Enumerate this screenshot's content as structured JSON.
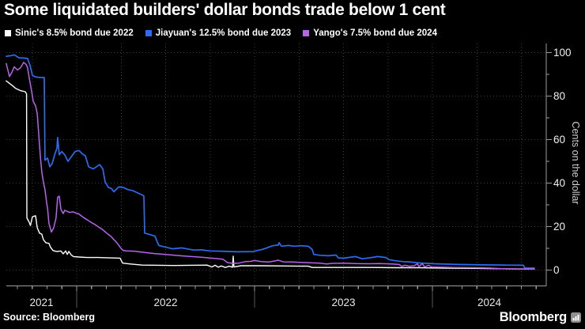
{
  "page": {
    "title": "Some liquidated builders' dollar bonds trade below 1 cent"
  },
  "source": {
    "label": "Source: Bloomberg"
  },
  "brand": {
    "wordmark": "Bloomberg",
    "icon": "bar-chart-icon"
  },
  "colors": {
    "background": "#000000",
    "grid": "#3c3c3c",
    "axis": "#9b9b9b",
    "separator": "#5a5a5a",
    "tick_label": "#f0f0f0",
    "year_label": "#e8e8e8",
    "axis_title": "#cfcfcf",
    "sinic": "#ffffff",
    "jiayuan": "#2a6cf2",
    "yango": "#b763ec"
  },
  "chart_data": {
    "type": "line",
    "title": "Some liquidated builders' dollar bonds trade below 1 cent",
    "xlabel": "",
    "ylabel": "Cents on the dollar",
    "ylim": [
      0,
      100
    ],
    "y_ticks_major": [
      0,
      20,
      40,
      60,
      80,
      100
    ],
    "y_ticks_minor": [
      10,
      30,
      50,
      70,
      90
    ],
    "x_range_decimal_years": [
      2021.6,
      2024.64
    ],
    "x_year_labels": [
      "2021",
      "2022",
      "2023",
      "2024"
    ],
    "x_year_boundaries": [
      2022,
      2023,
      2024
    ],
    "grid": "dotted horizontal at major y ticks, dotted vertical quarterly",
    "legend_position": "top-left",
    "series": [
      {
        "name": "Sinic's 8.5% bond due 2022",
        "color": "#ffffff",
        "points": [
          [
            2021.604,
            87
          ],
          [
            2021.636,
            85
          ],
          [
            2021.658,
            83.5
          ],
          [
            2021.684,
            82.5
          ],
          [
            2021.711,
            82
          ],
          [
            2021.718,
            81
          ],
          [
            2021.72,
            24
          ],
          [
            2021.733,
            22
          ],
          [
            2021.74,
            20.5
          ],
          [
            2021.751,
            24.5
          ],
          [
            2021.769,
            25
          ],
          [
            2021.778,
            19.5
          ],
          [
            2021.791,
            17
          ],
          [
            2021.804,
            16.5
          ],
          [
            2021.813,
            14
          ],
          [
            2021.827,
            12.5
          ],
          [
            2021.844,
            12.3
          ],
          [
            2021.853,
            10.5
          ],
          [
            2021.867,
            9
          ],
          [
            2021.889,
            8.5
          ],
          [
            2021.911,
            8.8
          ],
          [
            2021.924,
            7.5
          ],
          [
            2021.938,
            8.8
          ],
          [
            2021.947,
            7.2
          ],
          [
            2021.956,
            8.6
          ],
          [
            2021.969,
            7
          ],
          [
            2021.982,
            6.2
          ],
          [
            2022.013,
            6
          ],
          [
            2022.058,
            5.8
          ],
          [
            2022.124,
            5.8
          ],
          [
            2022.191,
            5.6
          ],
          [
            2022.244,
            5.5
          ],
          [
            2022.258,
            3.2
          ],
          [
            2022.302,
            2.8
          ],
          [
            2022.369,
            2.3
          ],
          [
            2022.458,
            2.2
          ],
          [
            2022.547,
            2.1
          ],
          [
            2022.636,
            2.2
          ],
          [
            2022.733,
            2.3
          ],
          [
            2022.76,
            1.4
          ],
          [
            2022.778,
            2.2
          ],
          [
            2022.796,
            1.3
          ],
          [
            2022.813,
            1.9
          ],
          [
            2022.836,
            1.2
          ],
          [
            2022.858,
            1.8
          ],
          [
            2022.876,
            1.3
          ],
          [
            2022.88,
            6.4
          ],
          [
            2022.884,
            1.4
          ],
          [
            2022.924,
            2
          ],
          [
            2023.036,
            2
          ],
          [
            2023.169,
            1.9
          ],
          [
            2023.302,
            1.8
          ],
          [
            2023.324,
            1.2
          ],
          [
            2023.436,
            1.2
          ],
          [
            2023.569,
            1.2
          ],
          [
            2023.658,
            1.2
          ],
          [
            2023.791,
            1.1
          ],
          [
            2023.924,
            1.1
          ],
          [
            2024.058,
            0.9
          ],
          [
            2024.236,
            0.8
          ],
          [
            2024.413,
            0.6
          ],
          [
            2024.502,
            0.5
          ],
          [
            2024.573,
            0.5
          ]
        ]
      },
      {
        "name": "Jiayuan's 12.5% bond due 2023",
        "color": "#2a6cf2",
        "points": [
          [
            2021.604,
            98.3
          ],
          [
            2021.631,
            98.6
          ],
          [
            2021.649,
            99
          ],
          [
            2021.676,
            97.6
          ],
          [
            2021.702,
            97.5
          ],
          [
            2021.724,
            97.3
          ],
          [
            2021.738,
            94
          ],
          [
            2021.751,
            89.5
          ],
          [
            2021.769,
            88.8
          ],
          [
            2021.791,
            88.6
          ],
          [
            2021.818,
            88.5
          ],
          [
            2021.822,
            50.5
          ],
          [
            2021.836,
            51.5
          ],
          [
            2021.849,
            47.5
          ],
          [
            2021.862,
            49
          ],
          [
            2021.876,
            53
          ],
          [
            2021.889,
            56
          ],
          [
            2021.893,
            61
          ],
          [
            2021.902,
            53
          ],
          [
            2021.916,
            54.5
          ],
          [
            2021.933,
            53
          ],
          [
            2021.951,
            50
          ],
          [
            2021.969,
            52
          ],
          [
            2021.991,
            54.5
          ],
          [
            2022.013,
            55
          ],
          [
            2022.031,
            53.5
          ],
          [
            2022.049,
            52.5
          ],
          [
            2022.067,
            47.5
          ],
          [
            2022.093,
            46.5
          ],
          [
            2022.111,
            47.5
          ],
          [
            2022.129,
            48.5
          ],
          [
            2022.147,
            46.5
          ],
          [
            2022.16,
            40.5
          ],
          [
            2022.178,
            38
          ],
          [
            2022.196,
            37.5
          ],
          [
            2022.209,
            36
          ],
          [
            2022.236,
            38.2
          ],
          [
            2022.262,
            38
          ],
          [
            2022.289,
            37
          ],
          [
            2022.316,
            36.5
          ],
          [
            2022.342,
            35.5
          ],
          [
            2022.369,
            34.5
          ],
          [
            2022.378,
            34
          ],
          [
            2022.382,
            17
          ],
          [
            2022.404,
            16.5
          ],
          [
            2022.44,
            15.6
          ],
          [
            2022.453,
            13
          ],
          [
            2022.462,
            11.3
          ],
          [
            2022.502,
            10.5
          ],
          [
            2022.538,
            9.8
          ],
          [
            2022.591,
            10.2
          ],
          [
            2022.658,
            9.2
          ],
          [
            2022.702,
            9.3
          ],
          [
            2022.747,
            8.8
          ],
          [
            2022.813,
            8.7
          ],
          [
            2022.902,
            8.4
          ],
          [
            2022.991,
            8.5
          ],
          [
            2023.049,
            9.6
          ],
          [
            2023.102,
            11.2
          ],
          [
            2023.133,
            11.5
          ],
          [
            2023.138,
            12.6
          ],
          [
            2023.151,
            11
          ],
          [
            2023.191,
            11.3
          ],
          [
            2023.222,
            11
          ],
          [
            2023.258,
            11.2
          ],
          [
            2023.302,
            11
          ],
          [
            2023.324,
            9.5
          ],
          [
            2023.333,
            7.2
          ],
          [
            2023.369,
            6.8
          ],
          [
            2023.413,
            6.6
          ],
          [
            2023.458,
            6.9
          ],
          [
            2023.471,
            5.6
          ],
          [
            2023.502,
            5.5
          ],
          [
            2023.569,
            6.2
          ],
          [
            2023.604,
            5.2
          ],
          [
            2023.658,
            5.8
          ],
          [
            2023.693,
            6.2
          ],
          [
            2023.738,
            5.8
          ],
          [
            2023.756,
            4.8
          ],
          [
            2023.791,
            4.3
          ],
          [
            2023.836,
            3.9
          ],
          [
            2023.867,
            3.8
          ],
          [
            2023.902,
            3.5
          ],
          [
            2023.938,
            3.2
          ],
          [
            2023.969,
            3.1
          ],
          [
            2024.013,
            2.9
          ],
          [
            2024.147,
            2.6
          ],
          [
            2024.28,
            2.4
          ],
          [
            2024.413,
            2.3
          ],
          [
            2024.511,
            2.2
          ],
          [
            2024.52,
            1
          ],
          [
            2024.573,
            0.9
          ]
        ]
      },
      {
        "name": "Yango's 7.5% bond due 2024",
        "color": "#b763ec",
        "points": [
          [
            2021.604,
            95
          ],
          [
            2021.622,
            89
          ],
          [
            2021.636,
            91
          ],
          [
            2021.649,
            93.5
          ],
          [
            2021.667,
            92
          ],
          [
            2021.684,
            93
          ],
          [
            2021.702,
            95.5
          ],
          [
            2021.716,
            94.5
          ],
          [
            2021.724,
            93
          ],
          [
            2021.733,
            88.5
          ],
          [
            2021.747,
            82
          ],
          [
            2021.756,
            77.5
          ],
          [
            2021.769,
            75.5
          ],
          [
            2021.778,
            72
          ],
          [
            2021.787,
            62
          ],
          [
            2021.796,
            52
          ],
          [
            2021.804,
            45
          ],
          [
            2021.813,
            40.5
          ],
          [
            2021.822,
            37
          ],
          [
            2021.831,
            31
          ],
          [
            2021.836,
            28.5
          ],
          [
            2021.844,
            21.5
          ],
          [
            2021.858,
            17.5
          ],
          [
            2021.871,
            19.5
          ],
          [
            2021.884,
            24
          ],
          [
            2021.893,
            33.5
          ],
          [
            2021.902,
            34
          ],
          [
            2021.911,
            28
          ],
          [
            2021.924,
            26
          ],
          [
            2021.933,
            27.5
          ],
          [
            2021.947,
            27
          ],
          [
            2021.96,
            26.5
          ],
          [
            2021.978,
            26.8
          ],
          [
            2021.996,
            26.2
          ],
          [
            2022.013,
            25.8
          ],
          [
            2022.036,
            24.3
          ],
          [
            2022.058,
            23.2
          ],
          [
            2022.08,
            22
          ],
          [
            2022.102,
            21
          ],
          [
            2022.124,
            19.8
          ],
          [
            2022.147,
            18.5
          ],
          [
            2022.169,
            17
          ],
          [
            2022.191,
            15.6
          ],
          [
            2022.209,
            14
          ],
          [
            2022.222,
            13
          ],
          [
            2022.236,
            11.5
          ],
          [
            2022.249,
            10
          ],
          [
            2022.262,
            9
          ],
          [
            2022.28,
            8.8
          ],
          [
            2022.324,
            8.7
          ],
          [
            2022.369,
            8.2
          ],
          [
            2022.436,
            7.6
          ],
          [
            2022.502,
            7.2
          ],
          [
            2022.569,
            6.7
          ],
          [
            2022.636,
            6.3
          ],
          [
            2022.702,
            5.9
          ],
          [
            2022.769,
            5.4
          ],
          [
            2022.822,
            5
          ],
          [
            2022.849,
            3.4
          ],
          [
            2022.88,
            3.1
          ],
          [
            2022.911,
            3.2
          ],
          [
            2022.947,
            3.9
          ],
          [
            2022.978,
            4
          ],
          [
            2023,
            4.4
          ],
          [
            2023.036,
            3.9
          ],
          [
            2023.08,
            3.7
          ],
          [
            2023.116,
            4.2
          ],
          [
            2023.133,
            4.6
          ],
          [
            2023.16,
            3.8
          ],
          [
            2023.213,
            3.7
          ],
          [
            2023.267,
            3.5
          ],
          [
            2023.324,
            3.3
          ],
          [
            2023.369,
            3.2
          ],
          [
            2023.404,
            2.8
          ],
          [
            2023.436,
            3.1
          ],
          [
            2023.502,
            3.2
          ],
          [
            2023.569,
            3
          ],
          [
            2023.636,
            2.9
          ],
          [
            2023.702,
            3
          ],
          [
            2023.769,
            2.8
          ],
          [
            2023.813,
            2.6
          ],
          [
            2023.827,
            1.7
          ],
          [
            2023.844,
            2.2
          ],
          [
            2023.871,
            1.8
          ],
          [
            2023.898,
            2
          ],
          [
            2023.916,
            2.9
          ],
          [
            2023.924,
            1.6
          ],
          [
            2023.942,
            3
          ],
          [
            2023.956,
            1.5
          ],
          [
            2023.978,
            2.2
          ],
          [
            2023.996,
            1.4
          ],
          [
            2024.013,
            1.4
          ],
          [
            2024.124,
            1.2
          ],
          [
            2024.236,
            1.1
          ],
          [
            2024.324,
            0.9
          ],
          [
            2024.413,
            0.6
          ],
          [
            2024.502,
            0.5
          ],
          [
            2024.573,
            0.5
          ]
        ]
      }
    ]
  }
}
